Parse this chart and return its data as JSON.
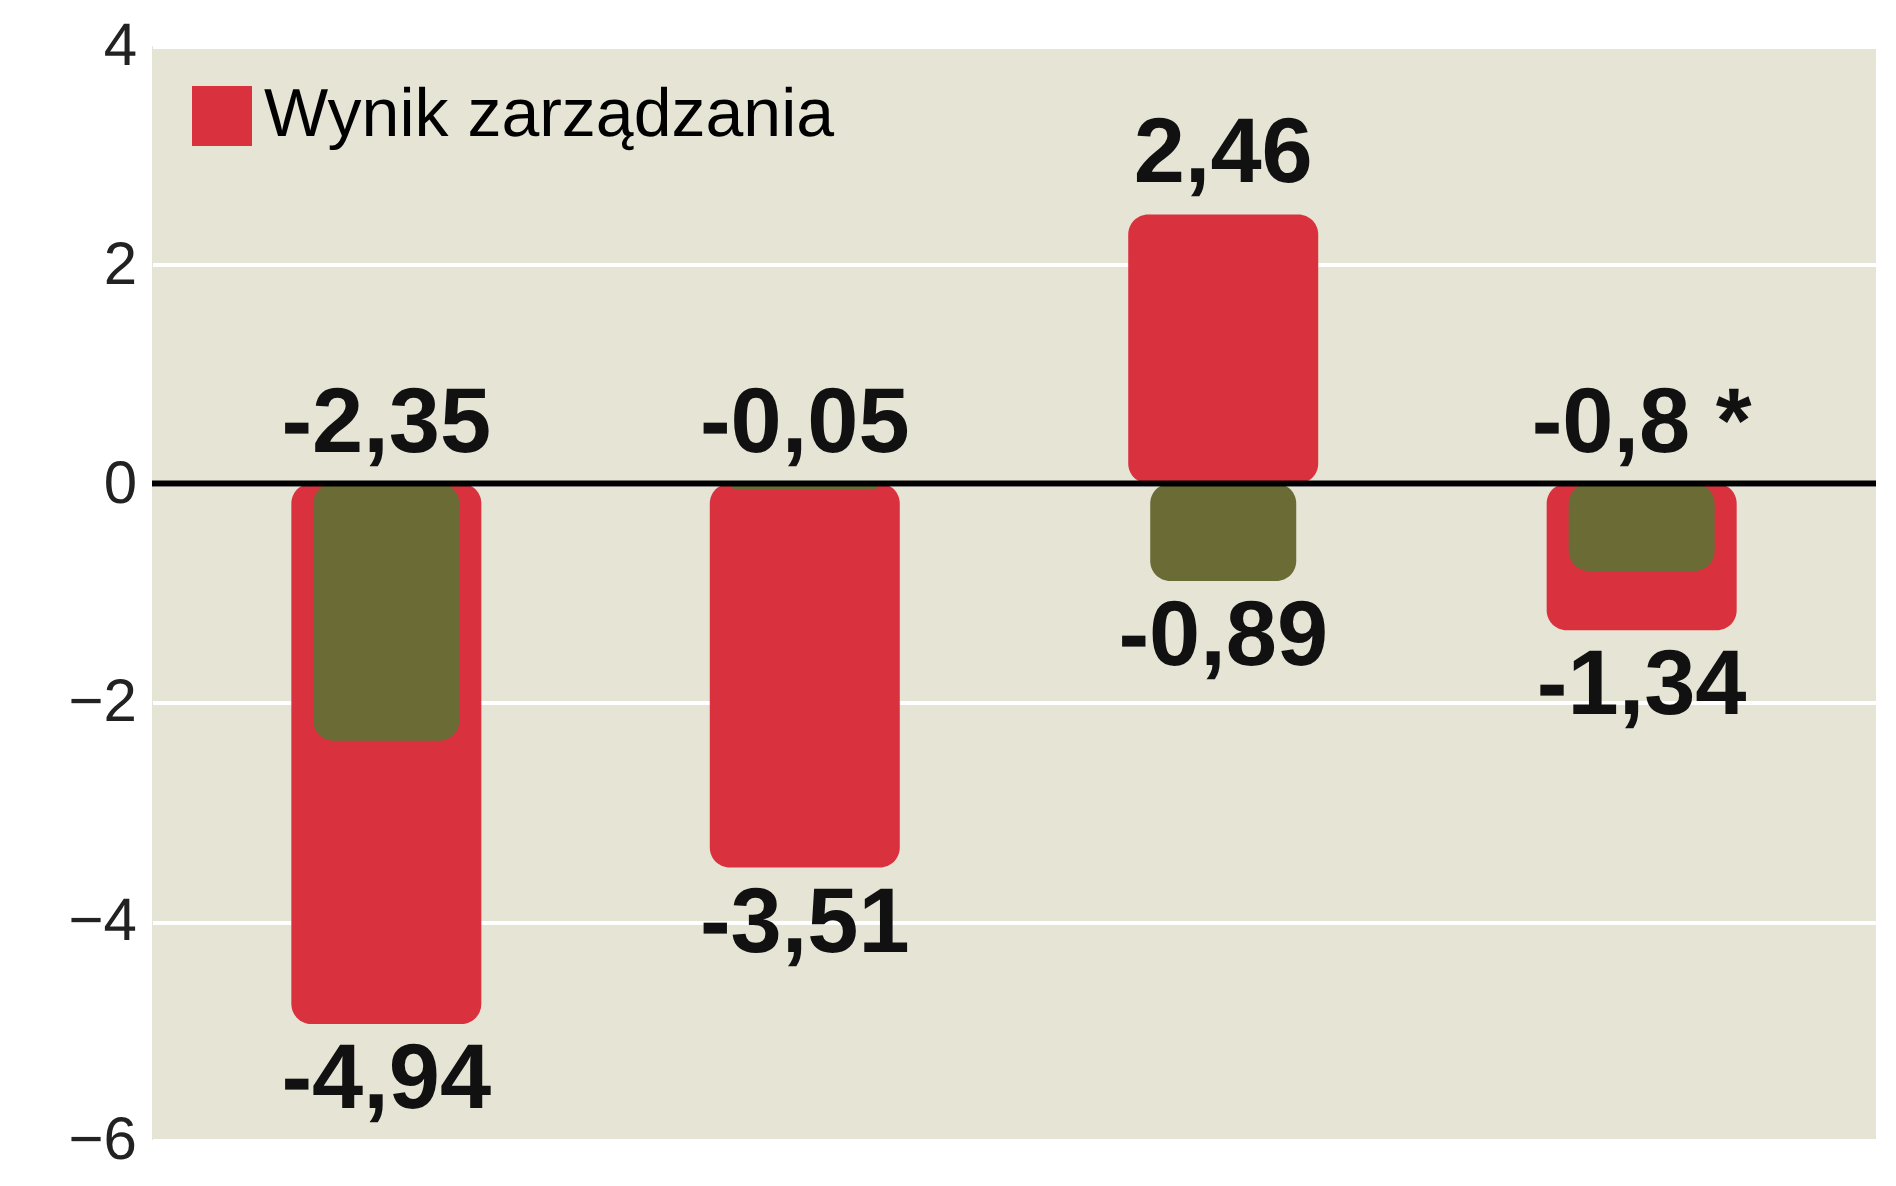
{
  "chart_data": {
    "type": "bar",
    "categories": [
      null,
      null,
      null,
      null
    ],
    "series": [
      {
        "name": "Wynik zarządzania",
        "color": "#d9323e",
        "values": [
          -4.94,
          -3.51,
          2.46,
          -1.34
        ],
        "value_labels": [
          "-4,94",
          "-3,51",
          "2,46",
          "-1,34"
        ]
      },
      {
        "color": "#6b6b35",
        "values": [
          -2.35,
          -0.05,
          -0.89,
          -0.8
        ],
        "value_labels": [
          "-2,35",
          "-0,05",
          "-0,89",
          "-0,8 *"
        ]
      }
    ],
    "ylim": [
      -6,
      4
    ],
    "yticks": [
      -6,
      -4,
      -2,
      0,
      2,
      4
    ],
    "grid": "y",
    "legend": "top left",
    "tick_labels": "y",
    "ref_lines": [
      {
        "axis": "y",
        "value": 0,
        "color": "#000000"
      }
    ]
  }
}
